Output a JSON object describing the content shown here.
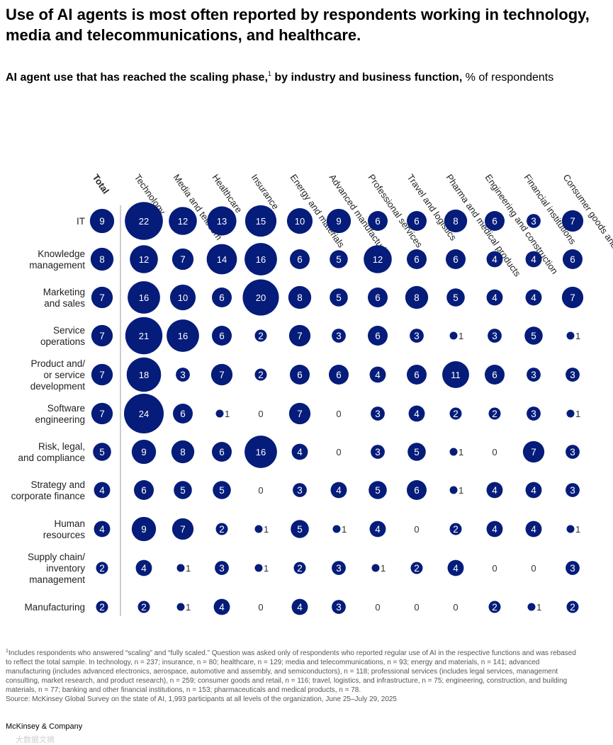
{
  "header": {
    "headline": "Use of AI agents is most often reported by respondents working in technology, media and telecommunications, and healthcare.",
    "subtitle_bold": "AI agent use that has reached the scaling phase,",
    "subtitle_sup": "1",
    "subtitle_bold_2": " by industry and business function,",
    "subtitle_light": " % of respondents"
  },
  "chart_data": {
    "type": "bubble-matrix",
    "value_unit": "% of respondents",
    "columns": [
      "Total",
      "Technology",
      "Media and telecom",
      "Healthcare",
      "Insurance",
      "Energy and materials",
      "Advanced manufacturing",
      "Professional services",
      "Travel and logistics",
      "Pharma and medical products",
      "Engineering and construction",
      "Financial institutions",
      "Consumer goods and retail"
    ],
    "rows": [
      {
        "label": "IT",
        "values": [
          9,
          22,
          12,
          13,
          15,
          10,
          9,
          6,
          6,
          8,
          6,
          3,
          7
        ]
      },
      {
        "label": "Knowledge management",
        "values": [
          8,
          12,
          7,
          14,
          16,
          6,
          5,
          12,
          6,
          6,
          4,
          4,
          6
        ]
      },
      {
        "label": "Marketing and sales",
        "values": [
          7,
          16,
          10,
          6,
          20,
          8,
          5,
          6,
          8,
          5,
          4,
          4,
          7
        ]
      },
      {
        "label": "Service operations",
        "values": [
          7,
          21,
          16,
          6,
          2,
          7,
          3,
          6,
          3,
          1,
          3,
          5,
          1
        ]
      },
      {
        "label": "Product and/ or service development",
        "values": [
          7,
          18,
          3,
          7,
          2,
          6,
          6,
          4,
          6,
          11,
          6,
          3,
          3
        ]
      },
      {
        "label": "Software engineering",
        "values": [
          7,
          24,
          6,
          1,
          0,
          7,
          0,
          3,
          4,
          2,
          2,
          3,
          1
        ]
      },
      {
        "label": "Risk, legal, and compliance",
        "values": [
          5,
          9,
          8,
          6,
          16,
          4,
          0,
          3,
          5,
          1,
          0,
          7,
          3
        ]
      },
      {
        "label": "Strategy and corporate finance",
        "values": [
          4,
          6,
          5,
          5,
          0,
          3,
          4,
          5,
          6,
          1,
          4,
          4,
          3
        ]
      },
      {
        "label": "Human resources",
        "values": [
          4,
          9,
          7,
          2,
          1,
          5,
          1,
          4,
          0,
          2,
          4,
          4,
          1
        ]
      },
      {
        "label": "Supply chain/ inventory management",
        "values": [
          2,
          4,
          1,
          3,
          1,
          2,
          3,
          1,
          2,
          4,
          0,
          0,
          3
        ]
      },
      {
        "label": "Manufacturing",
        "values": [
          2,
          2,
          1,
          4,
          0,
          4,
          3,
          0,
          0,
          0,
          2,
          1,
          2
        ]
      }
    ],
    "bubble_color": "#051c7a"
  },
  "footnote": {
    "marker": "1",
    "text": "Includes respondents who answered “scaling” and “fully scaled.” Question was asked only of respondents who reported regular use of AI in the respective functions and was rebased to reflect the total sample. In technology, n = 237; insurance, n = 80; healthcare, n = 129; media and telecommunications, n = 93; energy and materials, n = 141; advanced manufacturing (includes advanced electronics, aerospace, automotive and assembly, and semiconductors), n = 118; professional services (includes legal services, management consulting, market research, and product research), n = 259; consumer goods and retail, n = 116; travel, logistics, and infrastructure, n = 75; engineering, construction, and building materials, n = 77; banking and other financial institutions, n = 153; pharmaceuticals and medical products, n = 78.",
    "source": "Source: McKinsey Global Survey on the state of AI, 1,993 participants at all levels of the organization, June 25–July 29, 2025"
  },
  "brand": "McKinsey & Company",
  "watermark": "大数据文摘"
}
